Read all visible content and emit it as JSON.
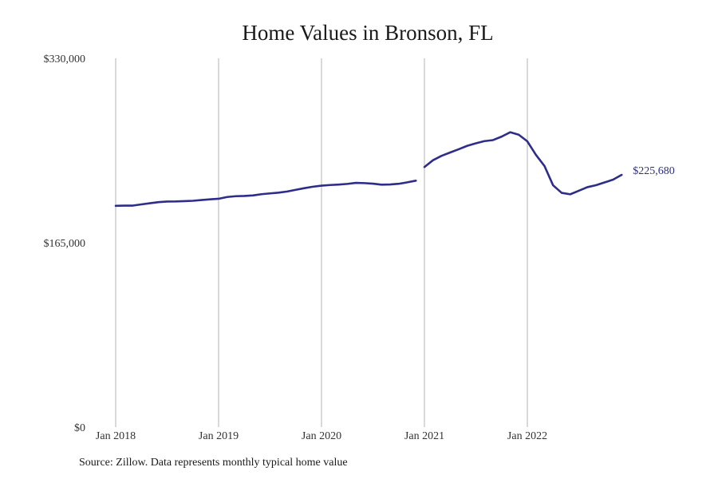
{
  "chart_data": {
    "type": "line",
    "title": "Home Values in Bronson, FL",
    "xlabel": "",
    "ylabel": "",
    "ylim": [
      0,
      330000
    ],
    "y_ticks": [
      {
        "value": 0,
        "label": "$0"
      },
      {
        "value": 165000,
        "label": "$165,000"
      },
      {
        "value": 330000,
        "label": "$330,000"
      }
    ],
    "x_ticks": [
      {
        "date": "2018-01",
        "label": "Jan 2018"
      },
      {
        "date": "2019-01",
        "label": "Jan 2019"
      },
      {
        "date": "2020-01",
        "label": "Jan 2020"
      },
      {
        "date": "2021-01",
        "label": "Jan 2021"
      },
      {
        "date": "2022-01",
        "label": "Jan 2022"
      }
    ],
    "grid": "vertical",
    "series_color": "#2e2d8a",
    "end_label": "$225,680",
    "series": [
      {
        "segments": [
          [
            [
              "2018-01",
              198000
            ],
            [
              "2018-02",
              198200
            ],
            [
              "2018-03",
              198200
            ],
            [
              "2018-04",
              199300
            ],
            [
              "2018-05",
              200300
            ],
            [
              "2018-06",
              201300
            ],
            [
              "2018-07",
              201800
            ],
            [
              "2018-08",
              201900
            ],
            [
              "2018-09",
              202200
            ],
            [
              "2018-10",
              202500
            ],
            [
              "2018-11",
              203200
            ],
            [
              "2018-12",
              203800
            ],
            [
              "2019-01",
              204300
            ],
            [
              "2019-02",
              205900
            ],
            [
              "2019-03",
              206600
            ],
            [
              "2019-04",
              206800
            ],
            [
              "2019-05",
              207300
            ],
            [
              "2019-06",
              208400
            ],
            [
              "2019-07",
              209100
            ],
            [
              "2019-08",
              209800
            ],
            [
              "2019-09",
              210800
            ],
            [
              "2019-10",
              212300
            ],
            [
              "2019-11",
              213800
            ],
            [
              "2019-12",
              215100
            ],
            [
              "2020-01",
              216000
            ],
            [
              "2020-02",
              216600
            ],
            [
              "2020-03",
              217000
            ],
            [
              "2020-04",
              217600
            ],
            [
              "2020-05",
              218500
            ],
            [
              "2020-06",
              218300
            ],
            [
              "2020-07",
              217800
            ],
            [
              "2020-08",
              216900
            ],
            [
              "2020-09",
              217100
            ],
            [
              "2020-10",
              217700
            ],
            [
              "2020-11",
              219000
            ],
            [
              "2020-12",
              220500
            ]
          ],
          [
            [
              "2021-01",
              232700
            ],
            [
              "2021-02",
              238800
            ],
            [
              "2021-03",
              242700
            ],
            [
              "2021-04",
              245700
            ],
            [
              "2021-05",
              248600
            ],
            [
              "2021-06",
              251700
            ],
            [
              "2021-07",
              253900
            ],
            [
              "2021-08",
              255900
            ],
            [
              "2021-09",
              256800
            ],
            [
              "2021-10",
              259900
            ],
            [
              "2021-11",
              263800
            ],
            [
              "2021-12",
              261600
            ],
            [
              "2022-01",
              255700
            ],
            [
              "2022-02",
              243600
            ],
            [
              "2022-03",
              233600
            ],
            [
              "2022-04",
              216400
            ],
            [
              "2022-05",
              209600
            ],
            [
              "2022-06",
              208300
            ],
            [
              "2022-07",
              211500
            ],
            [
              "2022-08",
              214700
            ],
            [
              "2022-09",
              216400
            ],
            [
              "2022-10",
              218900
            ],
            [
              "2022-11",
              221400
            ],
            [
              "2022-12",
              225680
            ]
          ]
        ]
      }
    ]
  },
  "source_note": "Source: Zillow. Data represents monthly typical home value"
}
